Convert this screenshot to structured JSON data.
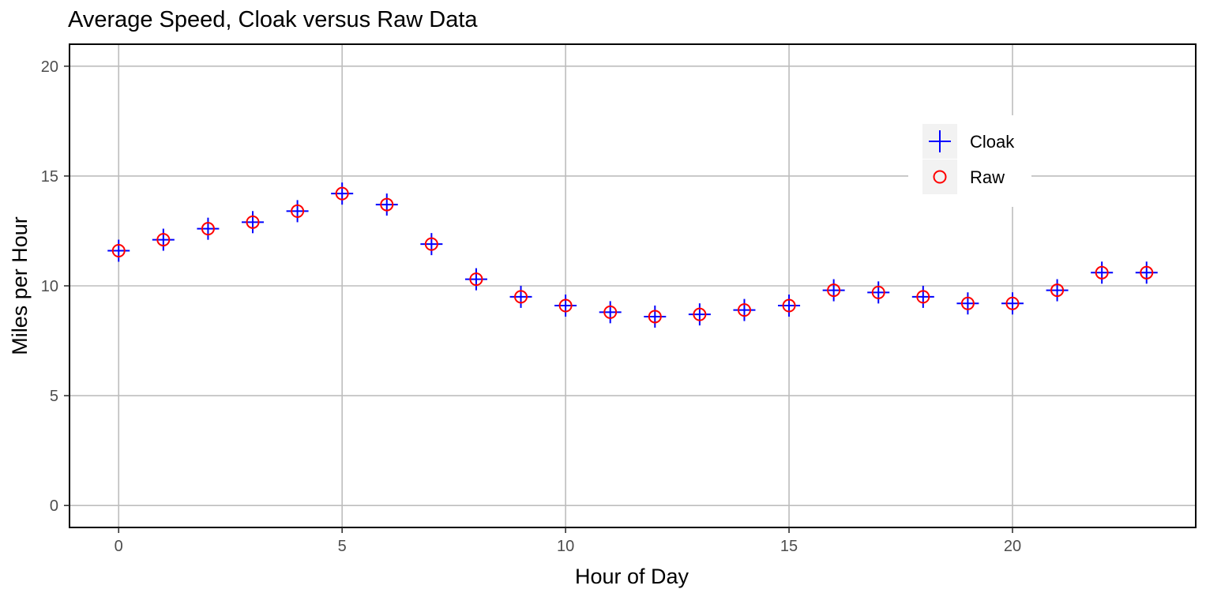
{
  "chart_data": {
    "type": "scatter",
    "title": "Average Speed, Cloak versus Raw Data",
    "xlabel": "Hour of Day",
    "ylabel": "Miles per Hour",
    "xlim": [
      -1.1,
      24.1
    ],
    "ylim": [
      -1.0,
      21.0
    ],
    "x_ticks": [
      0,
      5,
      10,
      15,
      20
    ],
    "y_ticks": [
      0,
      5,
      10,
      15,
      20
    ],
    "grid": true,
    "legend_position": "top-right",
    "x": [
      0,
      1,
      2,
      3,
      4,
      5,
      6,
      7,
      8,
      9,
      10,
      11,
      12,
      13,
      14,
      15,
      16,
      17,
      18,
      19,
      20,
      21,
      22,
      23
    ],
    "series": [
      {
        "name": "Cloak",
        "marker": "plus",
        "color": "#0000ff",
        "values": [
          11.6,
          12.1,
          12.6,
          12.9,
          13.4,
          14.2,
          13.7,
          11.9,
          10.3,
          9.5,
          9.1,
          8.8,
          8.6,
          8.7,
          8.9,
          9.1,
          9.8,
          9.7,
          9.5,
          9.2,
          9.2,
          9.8,
          10.6,
          10.6
        ]
      },
      {
        "name": "Raw",
        "marker": "circle",
        "color": "#ff0000",
        "values": [
          11.6,
          12.1,
          12.6,
          12.9,
          13.4,
          14.2,
          13.7,
          11.9,
          10.3,
          9.5,
          9.1,
          8.8,
          8.6,
          8.7,
          8.9,
          9.1,
          9.8,
          9.7,
          9.5,
          9.2,
          9.2,
          9.8,
          10.6,
          10.6
        ]
      }
    ]
  }
}
